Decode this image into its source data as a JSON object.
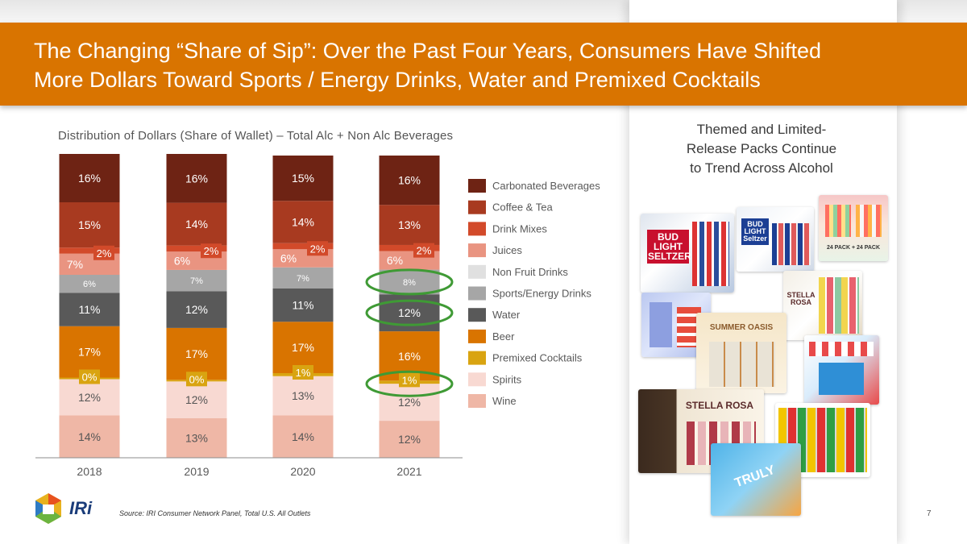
{
  "slide": {
    "title_line1": "The Changing “Share of Sip”: Over the Past Four Years, Consumers Have Shifted",
    "title_line2": "More Dollars Toward Sports / Energy Drinks, Water and Premixed Cocktails",
    "source": "Source: IRI Consumer Network Panel, Total U.S. All Outlets",
    "page_number": "7",
    "logo_text": "IRi"
  },
  "panel": {
    "title_line1": "Themed and Limited-",
    "title_line2": "Release Packs Continue",
    "title_line3": "to Trend Across Alcohol",
    "images": [
      {
        "name": "bud-light-seltzer-box",
        "label": "BUD LIGHT SELTZER"
      },
      {
        "name": "bud-light-seltzer-limited-box",
        "label": "BUD LIGHT Seltzer"
      },
      {
        "name": "botanicals-tropicals-box",
        "label": "24 PACK + 24 PACK"
      },
      {
        "name": "stella-rosa-cans-box",
        "label": "STELLA ROSA"
      },
      {
        "name": "blue-can-pack",
        "label": ""
      },
      {
        "name": "summer-oasis-pack",
        "label": "SUMMER OASIS"
      },
      {
        "name": "seagram-party-pack",
        "label": ""
      },
      {
        "name": "stella-rosa-wine-box",
        "label": "STELLA ROSA"
      },
      {
        "name": "topo-chico-cans",
        "label": ""
      },
      {
        "name": "truly-cans",
        "label": "TRULY"
      }
    ]
  },
  "chart_data": {
    "type": "bar",
    "subtitle": "Distribution of Dollars (Share of Wallet) – Total Alc + Non Alc Beverages",
    "categories": [
      "2018",
      "2019",
      "2020",
      "2021"
    ],
    "stacked": true,
    "unit": "%",
    "series": [
      {
        "name": "Wine",
        "color": "#efb7a6",
        "values": [
          14,
          13,
          14,
          12
        ]
      },
      {
        "name": "Spirits",
        "color": "#f8d9d2",
        "values": [
          12,
          12,
          13,
          12
        ]
      },
      {
        "name": "Premixed Cocktails",
        "color": "#d9a411",
        "values": [
          0,
          0,
          1,
          1
        ]
      },
      {
        "name": "Beer",
        "color": "#d97400",
        "values": [
          17,
          17,
          17,
          16
        ]
      },
      {
        "name": "Water",
        "color": "#595959",
        "values": [
          11,
          12,
          11,
          12
        ]
      },
      {
        "name": "Sports/Energy Drinks",
        "color": "#a6a6a6",
        "values": [
          6,
          7,
          7,
          8
        ]
      },
      {
        "name": "Non Fruit Drinks",
        "color": "#e0e0e0",
        "values": [
          0,
          0,
          0,
          0
        ]
      },
      {
        "name": "Juices",
        "color": "#e99481",
        "values": [
          7,
          6,
          6,
          6
        ]
      },
      {
        "name": "Drink Mixes",
        "color": "#d24a2a",
        "values": [
          2,
          2,
          2,
          2
        ]
      },
      {
        "name": "Coffee & Tea",
        "color": "#a83a20",
        "values": [
          15,
          14,
          14,
          13
        ]
      },
      {
        "name": "Carbonated Beverages",
        "color": "#6e2314",
        "values": [
          16,
          16,
          15,
          16
        ]
      }
    ],
    "legend_order": [
      "Carbonated Beverages",
      "Coffee & Tea",
      "Drink Mixes",
      "Juices",
      "Non Fruit Drinks",
      "Sports/Energy Drinks",
      "Water",
      "Beer",
      "Premixed Cocktails",
      "Spirits",
      "Wine"
    ],
    "legend_position": "right",
    "highlight_color": "#3f9a35",
    "highlights": [
      {
        "series": "Sports/Energy Drinks",
        "category": "2021"
      },
      {
        "series": "Water",
        "category": "2021"
      },
      {
        "series": "Premixed Cocktails",
        "category": "2021"
      }
    ],
    "ylim": [
      0,
      100
    ],
    "grid": false
  }
}
